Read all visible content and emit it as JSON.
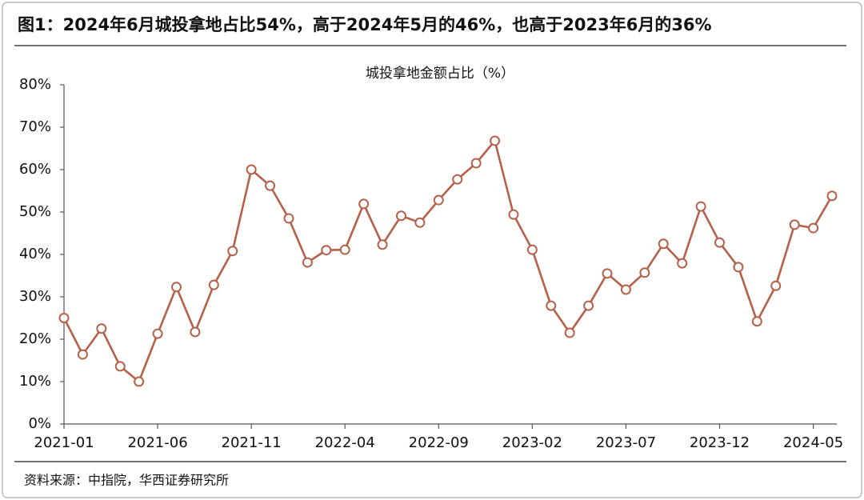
{
  "chart_data": {
    "type": "line",
    "title": "图1：2024年6月城投拿地占比54%，高于2024年5月的46%，也高于2023年6月的36%",
    "subtitle": "城投拿地金额占比（%）",
    "source": "资料来源：中指院，华西证券研究所",
    "categories": [
      "2021-01",
      null,
      null,
      null,
      null,
      "2021-06",
      null,
      null,
      null,
      null,
      "2021-11",
      null,
      null,
      null,
      null,
      "2022-04",
      null,
      null,
      null,
      null,
      "2022-09",
      null,
      null,
      null,
      null,
      "2023-02",
      null,
      null,
      null,
      null,
      "2023-07",
      null,
      null,
      null,
      null,
      "2023-12",
      null,
      null,
      null,
      null,
      "2024-05",
      null
    ],
    "values": [
      25,
      16.4,
      22.5,
      13.6,
      10,
      21.3,
      32.3,
      21.7,
      32.8,
      40.8,
      60,
      56.2,
      48.5,
      38.1,
      41,
      41.1,
      51.9,
      42.3,
      49.1,
      47.5,
      52.8,
      57.7,
      61.5,
      66.8,
      49.4,
      41.1,
      27.9,
      21.5,
      27.9,
      35.5,
      31.7,
      35.7,
      42.5,
      37.9,
      51.3,
      42.8,
      37,
      24.2,
      32.6,
      47,
      46.2,
      53.8
    ],
    "color": "#b5614a",
    "ylim": [
      0,
      80
    ],
    "yticks": [
      {
        "value": 0,
        "label": "0%"
      },
      {
        "value": 10,
        "label": "10%"
      },
      {
        "value": 20,
        "label": "20%"
      },
      {
        "value": 30,
        "label": "30%"
      },
      {
        "value": 40,
        "label": "40%"
      },
      {
        "value": 50,
        "label": "50%"
      },
      {
        "value": 60,
        "label": "60%"
      },
      {
        "value": 70,
        "label": "70%"
      },
      {
        "value": 80,
        "label": "80%"
      }
    ],
    "grid": false
  }
}
